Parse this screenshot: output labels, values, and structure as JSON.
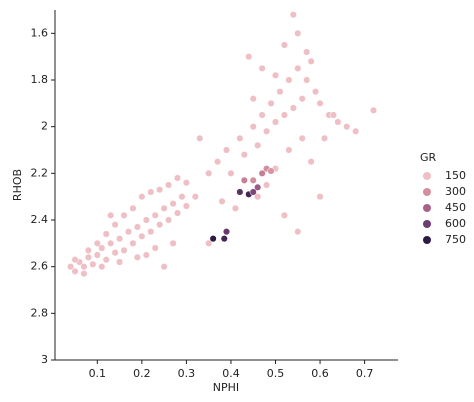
{
  "chart_data": {
    "type": "scatter",
    "x_label": "NPHI",
    "y_label": "RHOB",
    "xlim": [
      0.005,
      0.775
    ],
    "ylim": [
      3.0,
      1.5
    ],
    "xticks": [
      0.1,
      0.2,
      0.3,
      0.4,
      0.5,
      0.6,
      0.7
    ],
    "yticks": [
      1.6,
      1.8,
      2.0,
      2.2,
      2.4,
      2.6,
      2.8,
      3.0
    ],
    "legend_title": "GR",
    "hue_levels": [
      150,
      300,
      450,
      600,
      750
    ],
    "hue_colors": [
      "#eebfc4",
      "#d38f9f",
      "#a8628a",
      "#6d3e72",
      "#2e1a42"
    ],
    "x": [
      0.04,
      0.05,
      0.06,
      0.07,
      0.08,
      0.09,
      0.1,
      0.11,
      0.12,
      0.13,
      0.14,
      0.15,
      0.16,
      0.17,
      0.18,
      0.19,
      0.2,
      0.21,
      0.22,
      0.23,
      0.24,
      0.25,
      0.26,
      0.27,
      0.28,
      0.29,
      0.3,
      0.05,
      0.08,
      0.1,
      0.12,
      0.14,
      0.16,
      0.18,
      0.2,
      0.22,
      0.24,
      0.26,
      0.28,
      0.3,
      0.32,
      0.07,
      0.11,
      0.15,
      0.19,
      0.23,
      0.27,
      0.13,
      0.21,
      0.25,
      0.35,
      0.37,
      0.39,
      0.4,
      0.42,
      0.43,
      0.45,
      0.46,
      0.47,
      0.48,
      0.49,
      0.5,
      0.51,
      0.52,
      0.53,
      0.54,
      0.55,
      0.56,
      0.57,
      0.58,
      0.6,
      0.62,
      0.64,
      0.66,
      0.68,
      0.72,
      0.44,
      0.47,
      0.5,
      0.52,
      0.55,
      0.57,
      0.59,
      0.61,
      0.63,
      0.53,
      0.56,
      0.58,
      0.5,
      0.48,
      0.46,
      0.41,
      0.38,
      0.54,
      0.6,
      0.45,
      0.35,
      0.33,
      0.52,
      0.55,
      0.36,
      0.385,
      0.39,
      0.42,
      0.44,
      0.45,
      0.46,
      0.45,
      0.47,
      0.48,
      0.49,
      0.43
    ],
    "values": [
      2.6,
      2.62,
      2.58,
      2.6,
      2.56,
      2.59,
      2.55,
      2.52,
      2.57,
      2.5,
      2.54,
      2.48,
      2.53,
      2.45,
      2.5,
      2.43,
      2.47,
      2.4,
      2.45,
      2.38,
      2.42,
      2.35,
      2.4,
      2.33,
      2.37,
      2.3,
      2.34,
      2.57,
      2.53,
      2.5,
      2.46,
      2.42,
      2.38,
      2.35,
      2.3,
      2.28,
      2.27,
      2.25,
      2.22,
      2.24,
      2.3,
      2.63,
      2.6,
      2.58,
      2.56,
      2.52,
      2.5,
      2.38,
      2.55,
      2.6,
      2.2,
      2.15,
      2.1,
      2.2,
      2.05,
      2.12,
      2.0,
      2.08,
      1.95,
      2.02,
      1.9,
      1.98,
      1.85,
      1.95,
      1.8,
      1.92,
      1.75,
      1.88,
      1.8,
      1.72,
      1.9,
      1.95,
      1.98,
      2.0,
      2.02,
      1.93,
      1.7,
      1.75,
      1.78,
      1.65,
      1.6,
      1.68,
      1.85,
      2.05,
      1.95,
      2.1,
      2.05,
      2.15,
      2.18,
      2.25,
      2.3,
      2.35,
      2.32,
      1.52,
      2.3,
      1.88,
      2.5,
      2.05,
      2.38,
      2.45,
      2.48,
      2.48,
      2.45,
      2.28,
      2.29,
      2.28,
      2.26,
      2.23,
      2.2,
      2.18,
      2.19,
      2.23
    ],
    "hue": [
      90,
      100,
      110,
      95,
      120,
      100,
      90,
      130,
      100,
      110,
      95,
      120,
      100,
      90,
      130,
      100,
      110,
      95,
      120,
      100,
      90,
      130,
      100,
      110,
      95,
      120,
      100,
      90,
      130,
      100,
      110,
      95,
      120,
      100,
      90,
      130,
      100,
      110,
      95,
      120,
      100,
      90,
      130,
      100,
      110,
      95,
      120,
      100,
      90,
      130,
      100,
      110,
      95,
      120,
      100,
      90,
      130,
      100,
      110,
      95,
      120,
      100,
      90,
      130,
      100,
      110,
      95,
      120,
      100,
      90,
      130,
      100,
      110,
      95,
      120,
      100,
      90,
      130,
      100,
      110,
      95,
      120,
      100,
      90,
      130,
      100,
      110,
      95,
      120,
      100,
      90,
      130,
      100,
      110,
      95,
      120,
      100,
      90,
      130,
      100,
      750,
      700,
      620,
      650,
      700,
      560,
      480,
      300,
      350,
      300,
      280,
      350
    ]
  }
}
